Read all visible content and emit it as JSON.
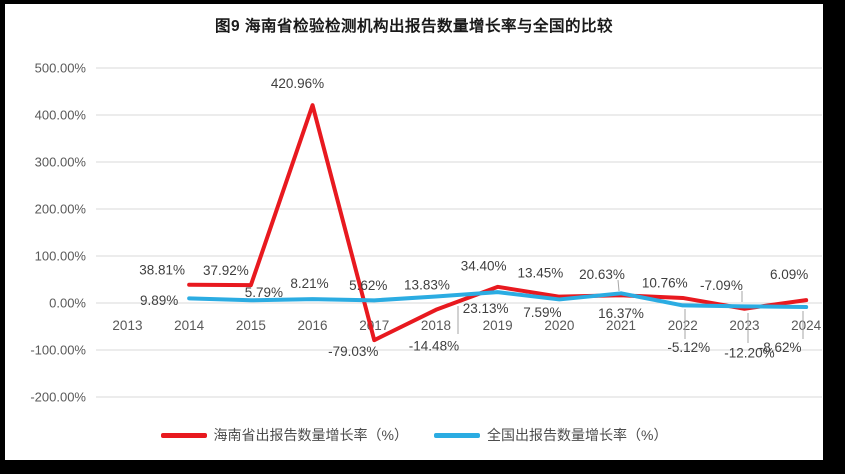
{
  "chart_data": {
    "type": "line",
    "title": "图9 海南省检验检测机构出报告数量增长率与全国的比较",
    "categories": [
      "2013",
      "2014",
      "2015",
      "2016",
      "2017",
      "2018",
      "2019",
      "2020",
      "2021",
      "2022",
      "2023",
      "2024"
    ],
    "xlabel": "",
    "ylabel": "",
    "ylim": [
      -200,
      500
    ],
    "grid": true,
    "legend_position": "bottom",
    "y_axis": {
      "ticks": [
        "500.00%",
        "400.00%",
        "300.00%",
        "200.00%",
        "100.00%",
        "0.00%",
        "-100.00%",
        "-200.00%"
      ],
      "values": [
        500,
        400,
        300,
        200,
        100,
        0,
        -100,
        -200
      ]
    },
    "series": [
      {
        "name": "海南省出报告数量增长率（%）",
        "color": "#e8191f",
        "values": [
          null,
          38.81,
          37.92,
          420.96,
          -79.03,
          -14.48,
          34.4,
          13.45,
          16.37,
          10.76,
          -12.2,
          6.09
        ],
        "labels": [
          "",
          "38.81%",
          "37.92%",
          "420.96%",
          "-79.03%",
          "-14.48%",
          "34.40%",
          "13.45%",
          "16.37%",
          "10.76%",
          "-12.20%",
          "6.09%"
        ],
        "label_offsets": [
          null,
          [
            -27,
            -15
          ],
          [
            -25,
            -15
          ],
          [
            -15,
            -22
          ],
          [
            -21,
            11
          ],
          [
            -2,
            36
          ],
          [
            -14,
            -21
          ],
          [
            -19,
            -24
          ],
          [
            0,
            18
          ],
          [
            -18,
            -15
          ],
          [
            5,
            44
          ],
          [
            -17,
            -26
          ]
        ]
      },
      {
        "name": "全国出报告数量增长率（%）",
        "color": "#2bace2",
        "values": [
          null,
          9.89,
          5.79,
          8.21,
          5.62,
          13.83,
          23.13,
          7.59,
          20.63,
          -5.12,
          -7.09,
          -8.62
        ],
        "labels": [
          "",
          "9.89%",
          "5.79%",
          "8.21%",
          "5.62%",
          "13.83%",
          "23.13%",
          "7.59%",
          "20.63%",
          "-5.12%",
          "-7.09%",
          "-8.62%"
        ],
        "label_offsets": [
          null,
          [
            -30,
            2
          ],
          [
            13,
            -8
          ],
          [
            -3,
            -16
          ],
          [
            -6,
            -15
          ],
          [
            -9,
            -12
          ],
          [
            -12,
            16
          ],
          [
            -17,
            13
          ],
          [
            -19,
            -19
          ],
          [
            6,
            42
          ],
          [
            -23,
            -21
          ],
          [
            -26,
            40
          ]
        ]
      }
    ],
    "leader_lines": [
      [
        458,
        306,
        458,
        334
      ],
      [
        748,
        313,
        748,
        343
      ],
      [
        618,
        280,
        619,
        291
      ],
      [
        685,
        309,
        685,
        339
      ],
      [
        742,
        291,
        742,
        302
      ],
      [
        803,
        311,
        803,
        339
      ]
    ],
    "style": {
      "gridline_color": "#d9d9d9",
      "tick_label_color": "#595959",
      "data_label_color": "#3f3f3f",
      "leader_color": "#a6a6a6"
    }
  }
}
